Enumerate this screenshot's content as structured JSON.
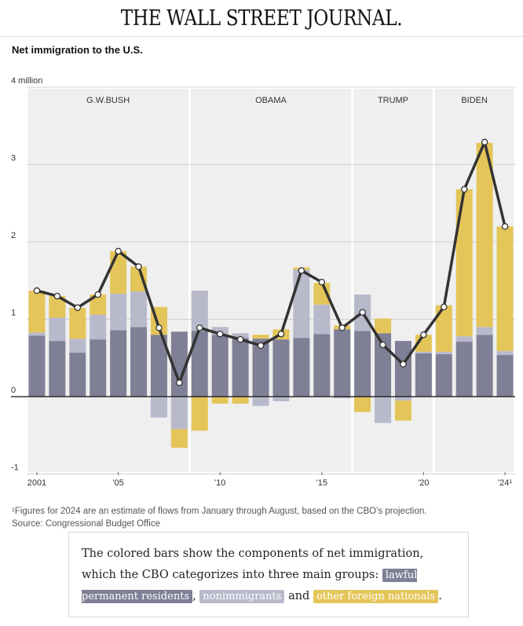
{
  "masthead": "THE WALL STREET JOURNAL.",
  "chart_data": {
    "type": "bar",
    "title": "Net immigration to the U.S.",
    "unit_label": "4 million",
    "y_ticks": [
      "4 million",
      "3",
      "2",
      "1",
      "0",
      "-1"
    ],
    "y_tick_values": [
      4,
      3,
      2,
      1,
      0,
      -1
    ],
    "ylim": [
      -1,
      4
    ],
    "x_tick_labels": [
      {
        "year": 2001,
        "label": "2001"
      },
      {
        "year": 2005,
        "label": "'05"
      },
      {
        "year": 2010,
        "label": "'10"
      },
      {
        "year": 2015,
        "label": "'15"
      },
      {
        "year": 2020,
        "label": "'20"
      },
      {
        "year": 2024,
        "label": "'24¹"
      }
    ],
    "grid": true,
    "stacked": true,
    "categories": [
      2001,
      2002,
      2003,
      2004,
      2005,
      2006,
      2007,
      2008,
      2009,
      2010,
      2011,
      2012,
      2013,
      2014,
      2015,
      2016,
      2017,
      2018,
      2019,
      2020,
      2021,
      2022,
      2023,
      2024
    ],
    "series": [
      {
        "name": "lawful permanent residents",
        "color": "#7f8096",
        "values": [
          0.79,
          0.72,
          0.57,
          0.74,
          0.86,
          0.9,
          0.8,
          0.84,
          0.85,
          0.8,
          0.76,
          0.75,
          0.74,
          0.76,
          0.81,
          0.87,
          0.85,
          0.82,
          0.72,
          0.56,
          0.55,
          0.71,
          0.8,
          0.54
        ]
      },
      {
        "name": "nonimmigrants",
        "color": "#b8b9cb",
        "values": [
          0.04,
          0.3,
          0.18,
          0.32,
          0.47,
          0.46,
          -0.27,
          -0.42,
          0.52,
          0.1,
          0.06,
          -0.12,
          -0.06,
          0.88,
          0.38,
          -0.02,
          0.47,
          -0.34,
          -0.05,
          0.02,
          0.03,
          0.07,
          0.1,
          0.05
        ]
      },
      {
        "name": "other foreign nationals",
        "color": "#e4c559",
        "values": [
          0.54,
          0.28,
          0.4,
          0.26,
          0.55,
          0.32,
          0.36,
          -0.24,
          -0.44,
          -0.09,
          -0.09,
          0.05,
          0.13,
          0.03,
          0.28,
          0.05,
          -0.2,
          0.19,
          -0.26,
          0.22,
          0.6,
          1.9,
          2.38,
          1.61
        ]
      }
    ],
    "line": {
      "name": "Net immigration",
      "values": [
        1.37,
        1.3,
        1.15,
        1.32,
        1.88,
        1.68,
        0.89,
        0.18,
        0.89,
        0.81,
        0.74,
        0.66,
        0.81,
        1.63,
        1.48,
        0.89,
        1.09,
        0.67,
        0.42,
        0.8,
        1.16,
        2.68,
        3.29,
        2.2
      ]
    },
    "eras": [
      {
        "label": "G.W.BUSH",
        "start": 2001,
        "end": 2008
      },
      {
        "label": "OBAMA",
        "start": 2009,
        "end": 2016
      },
      {
        "label": "TRUMP",
        "start": 2017,
        "end": 2020
      },
      {
        "label": "BIDEN",
        "start": 2021,
        "end": 2024
      }
    ]
  },
  "footnote": {
    "note": "¹Figures for 2024 are an estimate of flows from January through August, based on the CBO’s projection.",
    "source": "Source: Congressional Budget Office"
  },
  "explainer": {
    "intro": "The colored bars show the components of net immigration, which the CBO categorizes into three main groups:",
    "chip_lpr": "lawful permanent residents",
    "sep1": ",",
    "chip_non": "nonimmigrants",
    "and": "and",
    "chip_other": "other foreign nationals",
    "end": "."
  }
}
